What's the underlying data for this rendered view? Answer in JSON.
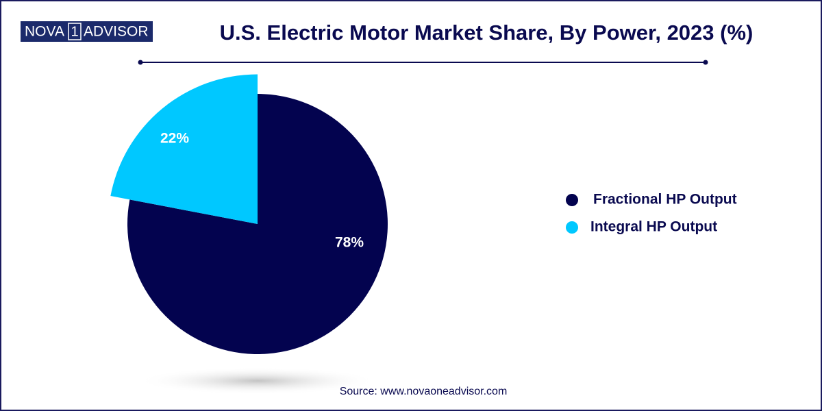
{
  "logo": {
    "left": "NOVA",
    "mark": "1",
    "right": "ADVISOR"
  },
  "chart_data": {
    "type": "pie",
    "title": "U.S. Electric Motor Market Share, By Power, 2023 (%)",
    "categories": [
      "Fractional HP Output",
      "Integral HP Output"
    ],
    "values": [
      78,
      22
    ],
    "value_labels": [
      "78%",
      "22%"
    ],
    "colors": [
      "#03034f",
      "#00c8ff"
    ],
    "source": "Source: www.novaoneadvisor.com"
  }
}
